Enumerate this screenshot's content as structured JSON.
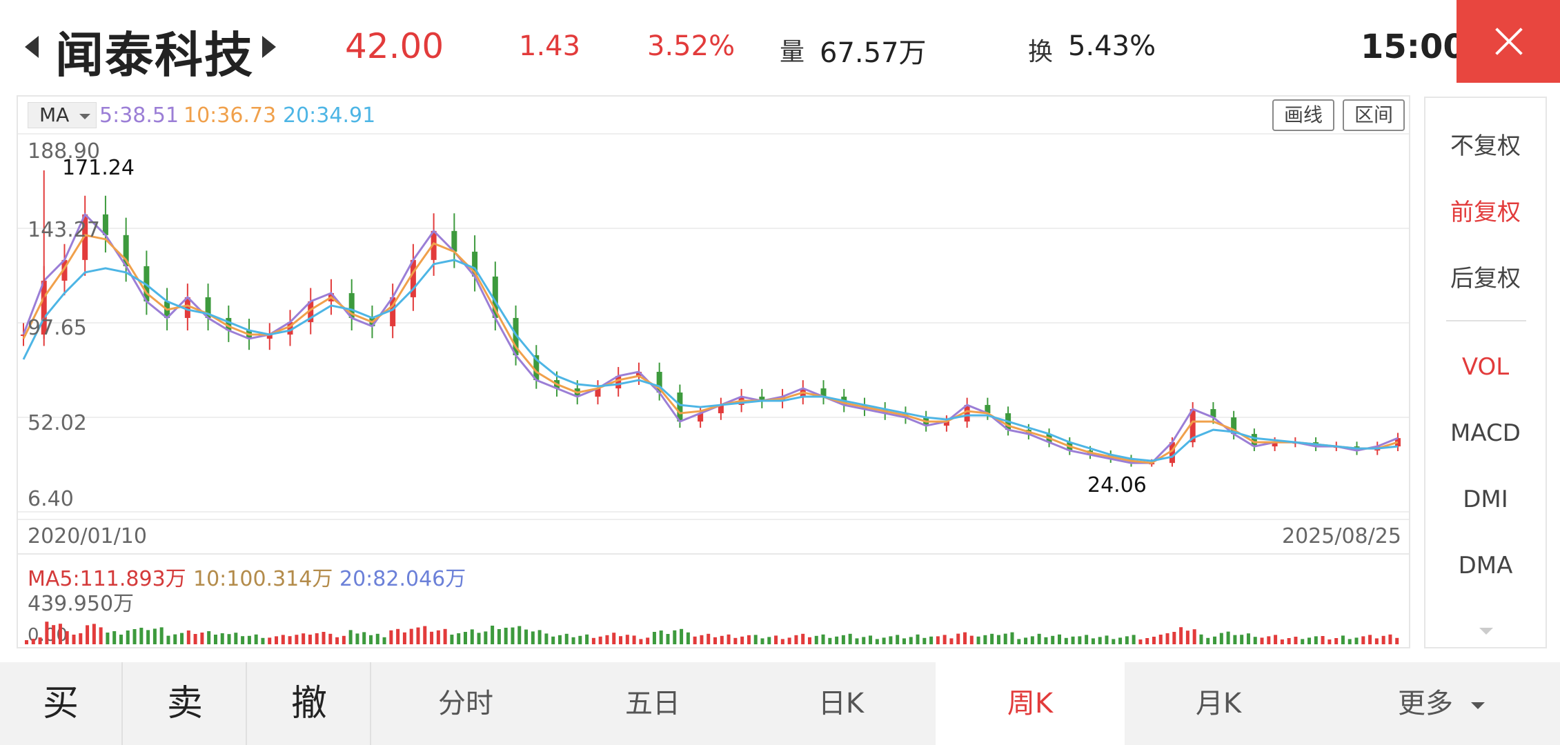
{
  "header": {
    "stock_name": "闻泰科技",
    "price": "42.00",
    "change": "1.43",
    "change_pct": "3.52%",
    "volume_label": "量",
    "volume_value": "67.57万",
    "turnover_label": "换",
    "turnover_value": "5.43%",
    "time": "15:00"
  },
  "chart_toolbar": {
    "indicator": "MA",
    "ma5": "5:38.51",
    "ma10": "10:36.73",
    "ma20": "20:34.91",
    "draw_line": "画线",
    "range": "区间"
  },
  "price_axis": {
    "top": "188.90",
    "upper": "143.27",
    "middle": "97.65",
    "lower": "52.02",
    "bottom": "6.40",
    "high_mark": "171.24",
    "low_mark": "24.06"
  },
  "dates": {
    "start": "2020/01/10",
    "end": "2025/08/25"
  },
  "volume_panel": {
    "ma5": "MA5:111.893万",
    "ma10": "10:100.314万",
    "ma20": "20:82.046万",
    "max": "439.950万",
    "zero": "0.00"
  },
  "adjust_options": [
    "不复权",
    "前复权",
    "后复权"
  ],
  "indicator_options": [
    "VOL",
    "MACD",
    "DMI",
    "DMA"
  ],
  "trade_buttons": {
    "buy": "买",
    "sell": "卖",
    "cancel": "撤"
  },
  "period_tabs": [
    "分时",
    "五日",
    "日K",
    "周K",
    "月K",
    "更多"
  ],
  "colors": {
    "up": "#e23b3b",
    "down": "#3d9a3d",
    "ma5": "#9b7ed6",
    "ma10": "#f0a04b",
    "ma20": "#4db5e5",
    "accent": "#e8463f"
  },
  "chart_data": {
    "type": "line",
    "x_range": [
      "2020/01/10",
      "2025/08/25"
    ],
    "ylim": [
      6.4,
      188.9
    ],
    "y_ticks": [
      188.9,
      143.27,
      97.65,
      52.02,
      6.4
    ],
    "high": 171.24,
    "low": 24.06,
    "series": [
      {
        "name": "5:38.51",
        "values": [
          92,
          118,
          128,
          150,
          140,
          125,
          108,
          100,
          110,
          100,
          94,
          90,
          92,
          98,
          108,
          112,
          100,
          96,
          110,
          128,
          142,
          132,
          120,
          100,
          82,
          70,
          66,
          62,
          66,
          72,
          74,
          64,
          50,
          54,
          58,
          62,
          60,
          62,
          66,
          62,
          58,
          56,
          54,
          52,
          48,
          50,
          58,
          54,
          46,
          44,
          40,
          36,
          34,
          32,
          30,
          30,
          40,
          56,
          52,
          44,
          38,
          40,
          40,
          38,
          38,
          36,
          38,
          42
        ]
      },
      {
        "name": "10:36.73",
        "values": [
          90,
          110,
          124,
          140,
          138,
          128,
          112,
          104,
          106,
          102,
          96,
          92,
          92,
          96,
          104,
          110,
          102,
          98,
          106,
          122,
          136,
          132,
          122,
          104,
          86,
          74,
          68,
          64,
          66,
          70,
          72,
          66,
          54,
          55,
          58,
          60,
          60,
          61,
          64,
          62,
          59,
          57,
          55,
          53,
          50,
          50,
          55,
          54,
          48,
          45,
          42,
          38,
          35,
          33,
          31,
          30,
          36,
          50,
          50,
          46,
          40,
          40,
          40,
          39,
          38,
          37,
          37,
          40
        ]
      },
      {
        "name": "20:34.91",
        "values": [
          80,
          100,
          112,
          122,
          124,
          122,
          116,
          108,
          104,
          102,
          98,
          94,
          92,
          94,
          100,
          106,
          104,
          100,
          104,
          114,
          126,
          128,
          124,
          108,
          92,
          80,
          72,
          68,
          67,
          68,
          70,
          67,
          58,
          57,
          58,
          59,
          60,
          60,
          62,
          62,
          60,
          58,
          56,
          54,
          52,
          51,
          53,
          53,
          50,
          47,
          44,
          40,
          37,
          34,
          32,
          31,
          33,
          42,
          46,
          45,
          42,
          41,
          40,
          39,
          38,
          37,
          37,
          38
        ]
      }
    ]
  }
}
